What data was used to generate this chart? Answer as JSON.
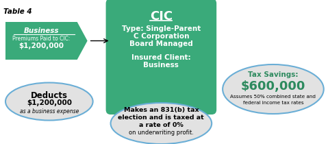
{
  "title": "Table 4",
  "bg_color": "#ffffff",
  "green_color": "#3aaa7a",
  "dark_green_text": "#2d8a5e",
  "light_gray": "#e2e2e2",
  "blue_outline": "#6aaed6",
  "pentagon_label_line1": "Business",
  "pentagon_label_line2": "Premiums Paid to CIC:",
  "pentagon_label_line3": "$1,200,000",
  "deduct_line1": "Deducts",
  "deduct_line2": "$1,200,000",
  "deduct_line3": "as a business expense",
  "cic_title": "CIC",
  "cic_line1": "Type: Single-Parent",
  "cic_line2": "C Corporation",
  "cic_line3": "Board Managed",
  "cic_line4": "Insured Client:",
  "cic_line5": "Business",
  "oval_bottom_line1": "Makes an 831(b) tax",
  "oval_bottom_line2": "election and is taxed at",
  "oval_bottom_line3": "a rate of 0%",
  "oval_bottom_line4": "on underwriting profit.",
  "tax_title": "Tax Savings:",
  "tax_amount": "$600,000",
  "tax_note1": "Assumes 50% combined state and",
  "tax_note2": "federal income tax rates"
}
